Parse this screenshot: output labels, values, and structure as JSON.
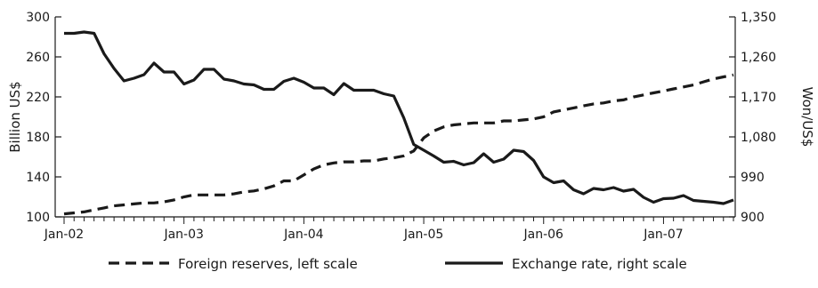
{
  "chart_data": {
    "type": "line",
    "x_tick_labels": [
      "Jan-02",
      "Jan-03",
      "Jan-04",
      "Jan-05",
      "Jan-06",
      "Jan-07"
    ],
    "y_left": {
      "label": "Billion US$",
      "ticks": [
        100,
        140,
        180,
        220,
        260,
        300
      ],
      "tick_labels": [
        "100",
        "140",
        "180",
        "220",
        "260",
        "300"
      ],
      "range": [
        100,
        300
      ]
    },
    "y_right": {
      "label": "Won/US$",
      "ticks": [
        900,
        990,
        1080,
        1170,
        1260,
        1350
      ],
      "tick_labels": [
        "900",
        "990",
        "1,080",
        "1,170",
        "1,260",
        "1,350"
      ],
      "range": [
        900,
        1350
      ]
    },
    "x_start": "Jan-02",
    "x_end": "Aug-07",
    "series": [
      {
        "name": "Foreign reserves, left scale",
        "axis": "left",
        "style": "dashed",
        "months": [
          "Jan-02",
          "Feb-02",
          "Mar-02",
          "Apr-02",
          "May-02",
          "Jun-02",
          "Jul-02",
          "Aug-02",
          "Sep-02",
          "Oct-02",
          "Nov-02",
          "Dec-02",
          "Jan-03",
          "Feb-03",
          "Mar-03",
          "Apr-03",
          "May-03",
          "Jun-03",
          "Jul-03",
          "Aug-03",
          "Sep-03",
          "Oct-03",
          "Nov-03",
          "Dec-03",
          "Jan-04",
          "Feb-04",
          "Mar-04",
          "Apr-04",
          "May-04",
          "Jun-04",
          "Jul-04",
          "Aug-04",
          "Sep-04",
          "Oct-04",
          "Nov-04",
          "Dec-04",
          "Jan-05",
          "Feb-05",
          "Mar-05",
          "Apr-05",
          "May-05",
          "Jun-05",
          "Jul-05",
          "Aug-05",
          "Sep-05",
          "Oct-05",
          "Nov-05",
          "Dec-05",
          "Jan-06",
          "Feb-06",
          "Mar-06",
          "Apr-06",
          "May-06",
          "Jun-06",
          "Jul-06",
          "Aug-06",
          "Sep-06",
          "Oct-06",
          "Nov-06",
          "Dec-06",
          "Jan-07",
          "Feb-07",
          "Mar-07",
          "Apr-07",
          "May-07",
          "Jun-07",
          "Jul-07",
          "Aug-07"
        ],
        "values": [
          103,
          104,
          105,
          107,
          109,
          111,
          112,
          113,
          114,
          114,
          115,
          117,
          120,
          122,
          122,
          122,
          122,
          123,
          125,
          126,
          128,
          131,
          136,
          136,
          142,
          148,
          152,
          154,
          155,
          155,
          156,
          156,
          158,
          159,
          161,
          166,
          179,
          186,
          190,
          192,
          193,
          194,
          194,
          194,
          196,
          196,
          197,
          198,
          200,
          205,
          207,
          209,
          211,
          213,
          214,
          216,
          217,
          220,
          222,
          224,
          226,
          228,
          230,
          232,
          235,
          238,
          240,
          242
        ]
      },
      {
        "name": "Exchange rate, right scale",
        "axis": "right",
        "style": "solid",
        "months": [
          "Jan-02",
          "Feb-02",
          "Mar-02",
          "Apr-02",
          "May-02",
          "Jun-02",
          "Jul-02",
          "Aug-02",
          "Sep-02",
          "Oct-02",
          "Nov-02",
          "Dec-02",
          "Jan-03",
          "Feb-03",
          "Mar-03",
          "Apr-03",
          "May-03",
          "Jun-03",
          "Jul-03",
          "Aug-03",
          "Sep-03",
          "Oct-03",
          "Nov-03",
          "Dec-03",
          "Jan-04",
          "Feb-04",
          "Mar-04",
          "Apr-04",
          "May-04",
          "Jun-04",
          "Jul-04",
          "Aug-04",
          "Sep-04",
          "Oct-04",
          "Nov-04",
          "Dec-04",
          "Jan-05",
          "Feb-05",
          "Mar-05",
          "Apr-05",
          "May-05",
          "Jun-05",
          "Jul-05",
          "Aug-05",
          "Sep-05",
          "Oct-05",
          "Nov-05",
          "Dec-05",
          "Jan-06",
          "Feb-06",
          "Mar-06",
          "Apr-06",
          "May-06",
          "Jun-06",
          "Jul-06",
          "Aug-06",
          "Sep-06",
          "Oct-06",
          "Nov-06",
          "Dec-06",
          "Jan-07",
          "Feb-07",
          "Mar-07",
          "Apr-07",
          "May-07",
          "Jun-07",
          "Jul-07",
          "Aug-07"
        ],
        "values": [
          1313,
          1313,
          1316,
          1313,
          1267,
          1234,
          1206,
          1212,
          1220,
          1246,
          1226,
          1226,
          1199,
          1208,
          1232,
          1232,
          1210,
          1206,
          1199,
          1197,
          1187,
          1187,
          1205,
          1212,
          1203,
          1190,
          1190,
          1175,
          1200,
          1185,
          1185,
          1185,
          1177,
          1172,
          1123,
          1063,
          1050,
          1037,
          1023,
          1025,
          1017,
          1022,
          1042,
          1023,
          1030,
          1050,
          1047,
          1027,
          990,
          977,
          981,
          961,
          952,
          964,
          961,
          966,
          958,
          962,
          944,
          933,
          941,
          942,
          948,
          937,
          935,
          933,
          930,
          938
        ]
      }
    ],
    "legend": {
      "position": "bottom"
    },
    "grid": false
  }
}
